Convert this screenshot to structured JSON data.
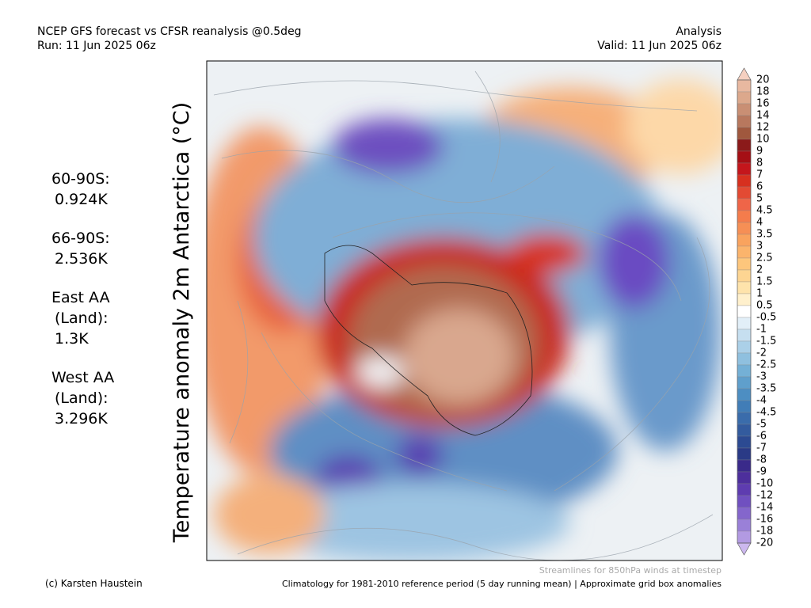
{
  "header": {
    "title_left": "NCEP GFS forecast vs CFSR reanalysis @0.5deg",
    "run": "Run: 11 Jun 2025 06z",
    "title_right": "Analysis",
    "valid": "Valid: 11 Jun 2025 06z"
  },
  "axis_title": "Temperature anomaly 2m Antarctica (°C)",
  "stats": [
    [
      "60-90S:",
      "0.924K"
    ],
    [
      "66-90S:",
      "2.536K"
    ],
    [
      "East AA",
      "(Land):",
      "1.3K"
    ],
    [
      "West AA",
      "(Land):",
      "3.296K"
    ]
  ],
  "colorbar": {
    "labels": [
      "20",
      "18",
      "16",
      "14",
      "12",
      "10",
      "9",
      "8",
      "7",
      "6",
      "5",
      "4.5",
      "4",
      "3.5",
      "3",
      "2.5",
      "2",
      "1.5",
      "1",
      "0.5",
      "-0.5",
      "-1",
      "-1.5",
      "-2",
      "-2.5",
      "-3",
      "-3.5",
      "-4",
      "-4.5",
      "-5",
      "-6",
      "-7",
      "-8",
      "-9",
      "-10",
      "-12",
      "-14",
      "-16",
      "-18",
      "-20"
    ],
    "colors": [
      "#f5d0c0",
      "#e8b8a0",
      "#dca88c",
      "#c98f74",
      "#b8785e",
      "#a0583e",
      "#8b1a1a",
      "#a50f15",
      "#c4161c",
      "#d7301f",
      "#e34a33",
      "#ef6548",
      "#f47c4c",
      "#f68f55",
      "#f9a35e",
      "#fbb46c",
      "#fdc67c",
      "#fdd592",
      "#fee3ab",
      "#fff0cc",
      "#ffffff",
      "#e2eff8",
      "#c6dff0",
      "#abd0e8",
      "#8fc0df",
      "#74b0d6",
      "#5f9fcc",
      "#4d8ec2",
      "#417db7",
      "#3a6cab",
      "#335b9e",
      "#2c4a92",
      "#2a3a86",
      "#3a2a8a",
      "#4d2f9c",
      "#5e3cb0",
      "#7050c0",
      "#8466cc",
      "#9a80d8",
      "#b29ae2",
      "#ccb8ee"
    ]
  },
  "footer": {
    "streamlines": "Streamlines for 850hPa winds at timestep",
    "credit": "(c) Karsten Haustein",
    "climatology": "Climatology for 1981-2010 reference period (5 day running mean) | Approximate grid box anomalies"
  }
}
